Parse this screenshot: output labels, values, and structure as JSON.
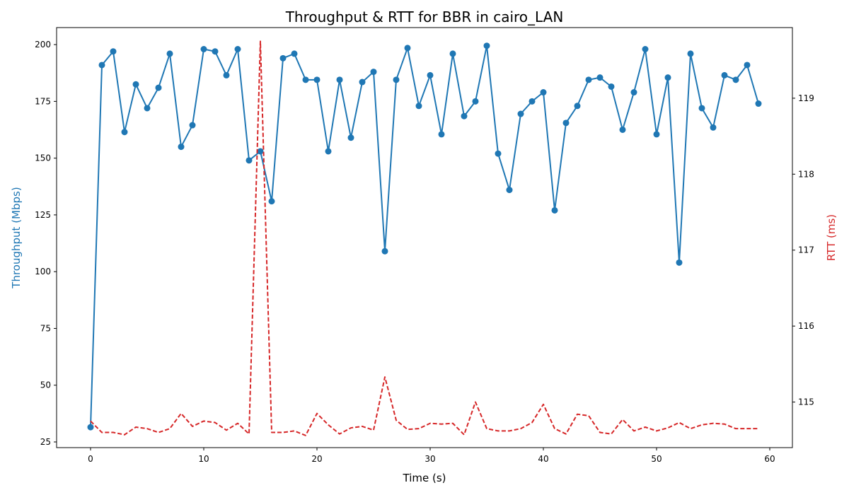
{
  "chart_data": {
    "type": "line",
    "title": "Throughput & RTT for BBR in cairo_LAN",
    "xlabel": "Time (s)",
    "ylabel_left": "Throughput (Mbps)",
    "ylabel_right": "RTT (ms)",
    "xlim": [
      -3,
      62
    ],
    "ylim_left": [
      22.5,
      207.5
    ],
    "ylim_right": [
      114.4,
      119.93
    ],
    "x_ticks": [
      0,
      10,
      20,
      30,
      40,
      50,
      60
    ],
    "y_left_ticks": [
      25,
      50,
      75,
      100,
      125,
      150,
      175,
      200
    ],
    "y_right_ticks": [
      115,
      116,
      117,
      118,
      119
    ],
    "x_tick_labels": [
      "0",
      "10",
      "20",
      "30",
      "40",
      "50",
      "60"
    ],
    "y_left_tick_labels": [
      "25",
      "50",
      "75",
      "100",
      "125",
      "150",
      "175",
      "200"
    ],
    "y_right_tick_labels": [
      "115",
      "116",
      "117",
      "118",
      "119"
    ],
    "grid": false,
    "series": [
      {
        "axis": "left",
        "color": "#1f77b4",
        "style": "solid",
        "marker": "circle",
        "x": [
          0,
          1,
          2,
          3,
          4,
          5,
          6,
          7,
          8,
          9,
          10,
          11,
          12,
          13,
          14,
          15,
          16,
          17,
          18,
          19,
          20,
          21,
          22,
          23,
          24,
          25,
          26,
          27,
          28,
          29,
          30,
          31,
          32,
          33,
          34,
          35,
          36,
          37,
          38,
          39,
          40,
          41,
          42,
          43,
          44,
          45,
          46,
          47,
          48,
          49,
          50,
          51,
          52,
          53,
          54,
          55,
          56,
          57,
          58,
          59
        ],
        "values": [
          31.5,
          191,
          197,
          161.5,
          182.5,
          172,
          181,
          196,
          155,
          164.5,
          198,
          197,
          186.5,
          198,
          149,
          153,
          131,
          194,
          196,
          184.5,
          184.5,
          153,
          184.5,
          159,
          183.5,
          188,
          109,
          184.5,
          198.5,
          173,
          186.5,
          160.5,
          196,
          168.5,
          175,
          199.5,
          152,
          136,
          169.5,
          175,
          179,
          127,
          165.5,
          173,
          184.5,
          185.5,
          181.5,
          162.5,
          179,
          198,
          160.5,
          185.5,
          104,
          196,
          172,
          163.5,
          186.5,
          184.5,
          191,
          174
        ]
      },
      {
        "axis": "right",
        "color": "#d62728",
        "style": "dashed",
        "marker": "none",
        "x": [
          0,
          1,
          2,
          3,
          4,
          5,
          6,
          7,
          8,
          9,
          10,
          11,
          12,
          13,
          14,
          15,
          16,
          17,
          18,
          19,
          20,
          21,
          22,
          23,
          24,
          25,
          26,
          27,
          28,
          29,
          30,
          31,
          32,
          33,
          34,
          35,
          36,
          37,
          38,
          39,
          40,
          41,
          42,
          43,
          44,
          45,
          46,
          47,
          48,
          49,
          50,
          51,
          52,
          53,
          54,
          55,
          56,
          57,
          58,
          59
        ],
        "values": [
          114.75,
          114.6,
          114.6,
          114.57,
          114.67,
          114.65,
          114.6,
          114.65,
          114.85,
          114.68,
          114.75,
          114.73,
          114.63,
          114.72,
          114.58,
          119.75,
          114.6,
          114.6,
          114.62,
          114.56,
          114.85,
          114.7,
          114.58,
          114.66,
          114.68,
          114.63,
          115.33,
          114.76,
          114.64,
          114.65,
          114.72,
          114.71,
          114.72,
          114.57,
          115,
          114.65,
          114.62,
          114.62,
          114.65,
          114.73,
          114.97,
          114.65,
          114.58,
          114.84,
          114.82,
          114.6,
          114.58,
          114.77,
          114.62,
          114.67,
          114.62,
          114.66,
          114.73,
          114.65,
          114.7,
          114.72,
          114.71,
          114.65,
          114.65,
          114.65
        ]
      }
    ]
  }
}
